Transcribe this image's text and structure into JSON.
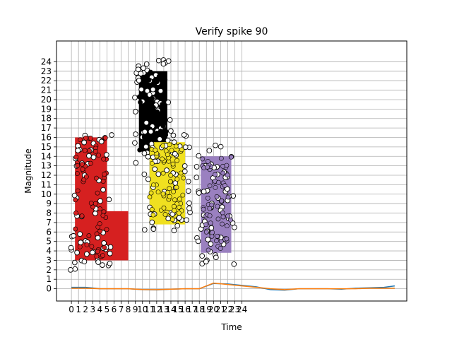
{
  "chart_data": {
    "type": "scatter",
    "title": "Verify spike 90",
    "xlabel": "Time",
    "ylabel": "Magnitude",
    "xlim": [
      -2.1,
      47.2
    ],
    "ylim": [
      -1.3,
      26.2
    ],
    "x_ticks": [
      0,
      1,
      2,
      3,
      4,
      5,
      6,
      7,
      8,
      9,
      10,
      11,
      12,
      13,
      14,
      15,
      16,
      17,
      18,
      19,
      20,
      21,
      22,
      23,
      24
    ],
    "x_tick_labels": [
      "0",
      "1",
      "2",
      "3",
      "4",
      "5",
      "6",
      "7",
      "8",
      "9",
      "10",
      "11",
      "12",
      "13",
      "14",
      "15",
      "16",
      "17",
      "18",
      "19",
      "20",
      "21",
      "22",
      "23",
      "24"
    ],
    "y_ticks": [
      0,
      1,
      2,
      3,
      4,
      5,
      6,
      7,
      8,
      9,
      10,
      11,
      12,
      13,
      14,
      15,
      16,
      17,
      18,
      19,
      20,
      21,
      22,
      23,
      24
    ],
    "y_tick_labels": [
      "0",
      "1",
      "2",
      "3",
      "4",
      "5",
      "6",
      "7",
      "8",
      "9",
      "10",
      "11",
      "12",
      "13",
      "14",
      "15",
      "16",
      "17",
      "18",
      "19",
      "20",
      "21",
      "22",
      "23",
      "24"
    ],
    "grid": true,
    "clusters": [
      {
        "color": "#d62020",
        "x_range": [
          0.5,
          5.0
        ],
        "y_range": [
          3.0,
          16.0
        ],
        "bar_x": [
          2.0,
          8.0
        ]
      },
      {
        "color": "#000000",
        "x_range": [
          9.5,
          13.5
        ],
        "y_range": [
          14.5,
          23.0
        ]
      },
      {
        "color": "#f0e020",
        "x_range": [
          11.0,
          16.0
        ],
        "y_range": [
          6.8,
          15.5
        ]
      },
      {
        "color": "#9a80c0",
        "x_range": [
          18.2,
          22.5
        ],
        "y_range": [
          3.8,
          14.0
        ]
      }
    ],
    "series": [
      {
        "color": "#1f77b4",
        "x": [
          0,
          2,
          4,
          6,
          8,
          10,
          12,
          14,
          16,
          18,
          20,
          22,
          24,
          26,
          28,
          30,
          32,
          34,
          36,
          38,
          40,
          42,
          44,
          45.5
        ],
        "y": [
          0.15,
          0.15,
          0.0,
          0.0,
          0.0,
          -0.1,
          -0.12,
          -0.05,
          0.0,
          0.0,
          0.55,
          0.5,
          0.35,
          0.2,
          -0.1,
          -0.15,
          0.0,
          0.0,
          0.0,
          -0.05,
          0.05,
          0.1,
          0.15,
          0.3
        ]
      },
      {
        "color": "#ff7f0e",
        "x": [
          0,
          2,
          4,
          6,
          8,
          10,
          12,
          14,
          16,
          18,
          20,
          22,
          24,
          26,
          28,
          30,
          32,
          34,
          36,
          38,
          40,
          42,
          44,
          45.5
        ],
        "y": [
          0.05,
          0.05,
          0.0,
          0.0,
          0.0,
          -0.08,
          -0.1,
          -0.05,
          0.0,
          0.0,
          0.6,
          0.45,
          0.3,
          0.15,
          0.0,
          -0.1,
          0.0,
          0.0,
          0.0,
          0.0,
          0.0,
          0.05,
          0.05,
          0.05
        ]
      }
    ]
  }
}
